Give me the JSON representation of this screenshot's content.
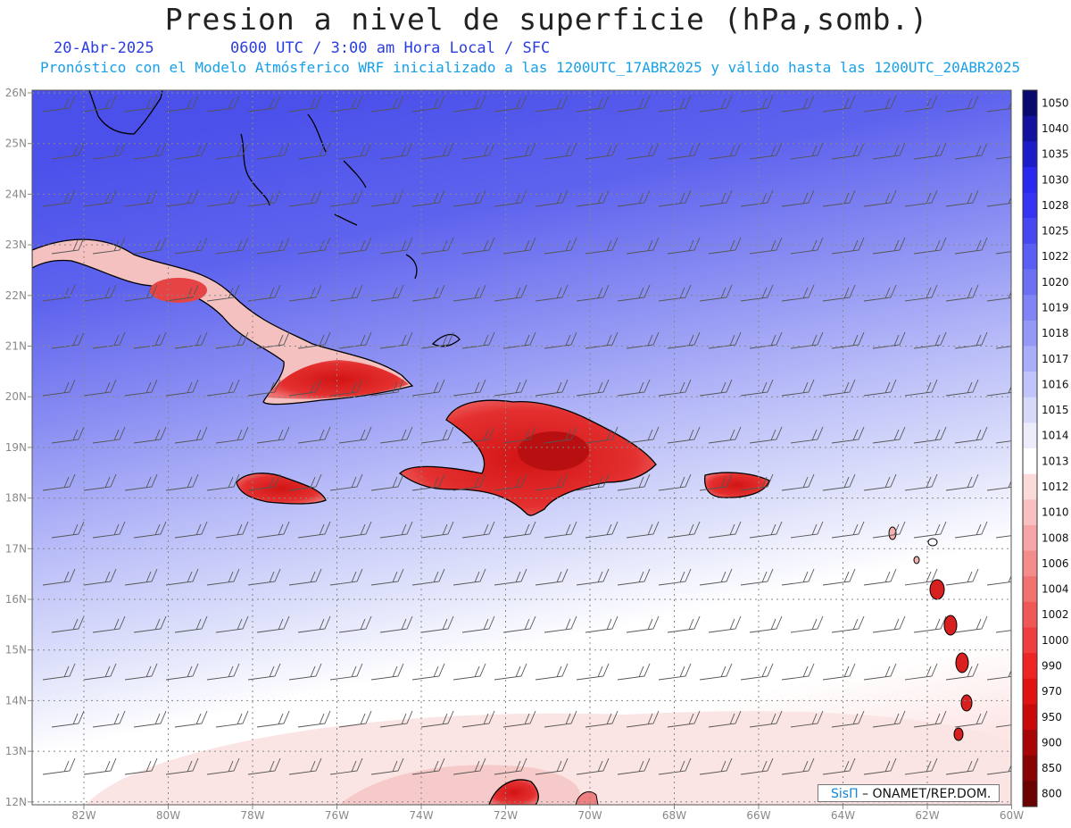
{
  "header": {
    "title": "Presion a nivel de superficie (hPa,somb.)",
    "date": "20-Abr-2025",
    "valid": "0600 UTC / 3:00 am Hora Local / SFC",
    "model_line": "Pronóstico con el Modelo Atmósferico WRF inicializado a las 1200UTC_17ABR2025 y válido hasta las  1200UTC_20ABR2025"
  },
  "map": {
    "lat_labels": [
      "26N",
      "25N",
      "24N",
      "23N",
      "22N",
      "21N",
      "20N",
      "19N",
      "18N",
      "17N",
      "16N",
      "15N",
      "14N",
      "13N",
      "12N"
    ],
    "lon_labels": [
      "82W",
      "80W",
      "78W",
      "76W",
      "74W",
      "72W",
      "70W",
      "68W",
      "66W",
      "64W",
      "62W",
      "60W"
    ],
    "land_color": "#e03232",
    "high_color": "#4a52e8",
    "low_color": "#ffffff"
  },
  "colorbar": {
    "levels": [
      "1050",
      "1040",
      "1035",
      "1030",
      "1028",
      "1025",
      "1022",
      "1020",
      "1019",
      "1018",
      "1017",
      "1016",
      "1015",
      "1014",
      "1013",
      "1012",
      "1010",
      "1008",
      "1006",
      "1004",
      "1002",
      "1000",
      "990",
      "970",
      "950",
      "900",
      "850",
      "800"
    ],
    "colors": [
      "#0a0a6e",
      "#12129e",
      "#1c1cc8",
      "#2828ee",
      "#3434f2",
      "#4848f2",
      "#5a5ef2",
      "#6c70f2",
      "#8084f4",
      "#9498f6",
      "#aaaef8",
      "#c0c4fa",
      "#d6daf8",
      "#ececfa",
      "#ffffff",
      "#fbdada",
      "#f8c0c0",
      "#f6a6a6",
      "#f48c8c",
      "#f27272",
      "#f05858",
      "#ee3e3e",
      "#ec2424",
      "#e01212",
      "#c80a0a",
      "#a80606",
      "#880404",
      "#6a0202"
    ]
  },
  "credit": {
    "brand": "SisΠ",
    "text": " – ONAMET/REP.DOM."
  }
}
